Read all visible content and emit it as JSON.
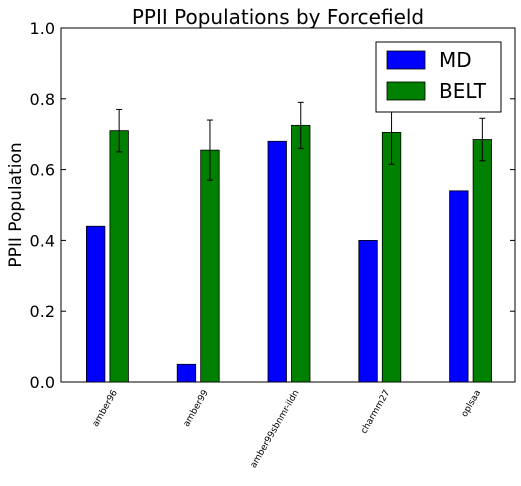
{
  "chart_data": {
    "type": "bar",
    "title": "PPII Populations by Forcefield",
    "xlabel": "",
    "ylabel": "PPII Population",
    "ylim": [
      0.0,
      1.0
    ],
    "yticks": [
      "0.0",
      "0.2",
      "0.4",
      "0.6",
      "0.8",
      "1.0"
    ],
    "categories": [
      "amber96",
      "amber99",
      "amber99sbnmr-ildn",
      "charmm27",
      "oplsaa"
    ],
    "series": [
      {
        "name": "MD",
        "color": "#0000ff",
        "values": [
          0.44,
          0.05,
          0.68,
          0.4,
          0.54
        ]
      },
      {
        "name": "BELT",
        "color": "#008000",
        "values": [
          0.71,
          0.655,
          0.725,
          0.705,
          0.685
        ],
        "errors": [
          0.06,
          0.085,
          0.065,
          0.09,
          0.06
        ]
      }
    ],
    "legend_position": "top-right",
    "grid": false
  }
}
